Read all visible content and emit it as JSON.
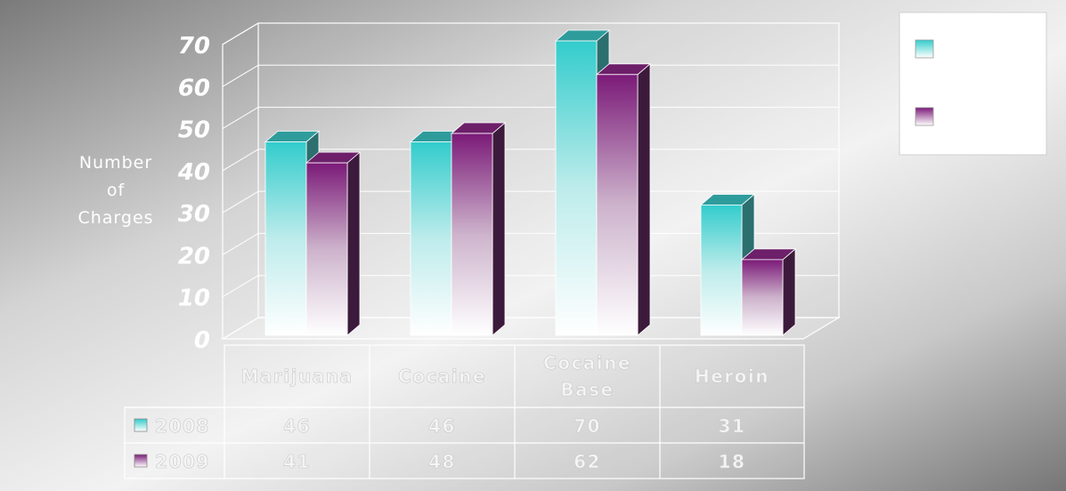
{
  "chart_data": {
    "type": "bar",
    "title": "",
    "xlabel": "",
    "ylabel": "Number of Charges",
    "ylabel_lines": [
      "Number",
      "of",
      "Charges"
    ],
    "ylim": [
      0,
      70
    ],
    "yticks": [
      "0",
      "10",
      "20",
      "30",
      "40",
      "50",
      "60",
      "70"
    ],
    "categories": [
      "Marijuana",
      "Cocaine",
      "Cocaine Base",
      "Heroin"
    ],
    "category_lines": [
      [
        "Marijuana"
      ],
      [
        "Cocaine"
      ],
      [
        "Cocaine",
        "Base"
      ],
      [
        "Heroin"
      ]
    ],
    "series": [
      {
        "name": "2008",
        "values": [
          46,
          46,
          70,
          31
        ]
      },
      {
        "name": "2009",
        "values": [
          41,
          48,
          62,
          18
        ]
      }
    ],
    "legend_position": "top-right",
    "data_table": true,
    "grid": true,
    "colors": {
      "series_2008": "#33cccc",
      "series_2009": "#7b1a78"
    }
  }
}
